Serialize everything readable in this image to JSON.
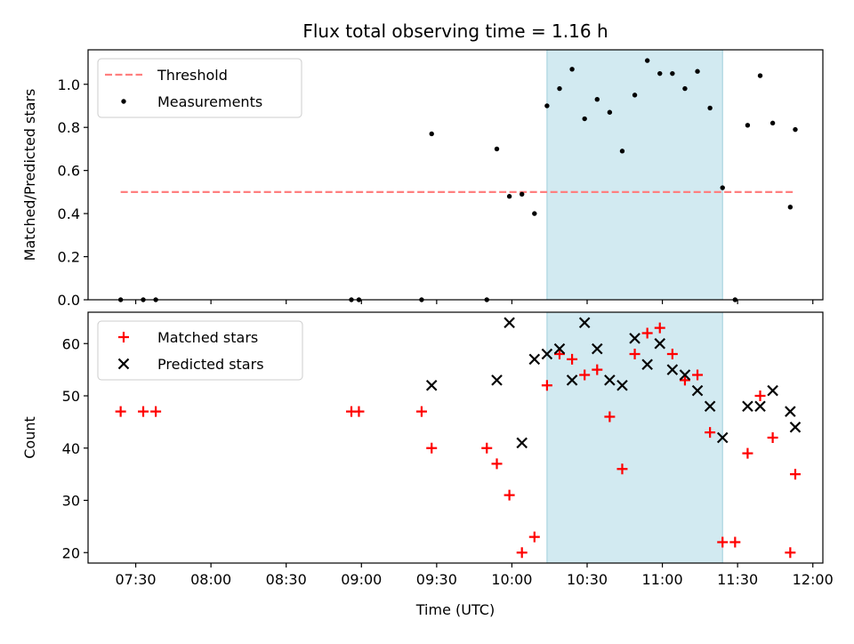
{
  "figure": {
    "title": "Flux total observing time = 1.16 h",
    "xlabel": "Time (UTC)",
    "highlight_color": "#add8e6"
  },
  "chart_data": [
    {
      "type": "scatter",
      "title": "Flux total observing time = 1.16 h",
      "xlabel": "",
      "ylabel": "Matched/Predicted stars",
      "xlim": [
        "07:11",
        "12:04"
      ],
      "ylim": [
        0,
        1.16
      ],
      "xticks": [
        "07:30",
        "08:00",
        "08:30",
        "09:00",
        "09:30",
        "10:00",
        "10:30",
        "11:00",
        "11:30",
        "12:00"
      ],
      "yticks": [
        "0.0",
        "0.2",
        "0.4",
        "0.6",
        "0.8",
        "1.0"
      ],
      "legend_position": "top-left",
      "highlight_span": [
        "10:14",
        "11:24"
      ],
      "threshold": {
        "name": "Threshold",
        "y": 0.5,
        "x_range": [
          "07:24",
          "11:53"
        ],
        "color": "#ff7f7f",
        "style": "dashed"
      },
      "series": [
        {
          "name": "Measurements",
          "marker": "dot",
          "color": "#000000",
          "x": [
            "07:24",
            "07:33",
            "07:38",
            "08:56",
            "08:59",
            "09:24",
            "09:28",
            "09:50",
            "09:54",
            "09:59",
            "10:04",
            "10:09",
            "10:14",
            "10:19",
            "10:24",
            "10:29",
            "10:34",
            "10:39",
            "10:44",
            "10:49",
            "10:54",
            "10:59",
            "11:04",
            "11:09",
            "11:14",
            "11:19",
            "11:24",
            "11:29",
            "11:34",
            "11:39",
            "11:44",
            "11:51",
            "11:53"
          ],
          "y": [
            0.0,
            0.0,
            0.0,
            0.0,
            0.0,
            0.0,
            0.77,
            0.0,
            0.7,
            0.48,
            0.49,
            0.4,
            0.9,
            0.98,
            1.07,
            0.84,
            0.93,
            0.87,
            0.69,
            0.95,
            1.11,
            1.05,
            1.05,
            0.98,
            1.06,
            0.89,
            0.52,
            0.0,
            0.81,
            1.04,
            0.82,
            0.43,
            0.79
          ]
        }
      ]
    },
    {
      "type": "scatter",
      "xlabel": "Time (UTC)",
      "ylabel": "Count",
      "xlim": [
        "07:11",
        "12:04"
      ],
      "ylim": [
        18,
        66
      ],
      "xticks": [
        "07:30",
        "08:00",
        "08:30",
        "09:00",
        "09:30",
        "10:00",
        "10:30",
        "11:00",
        "11:30",
        "12:00"
      ],
      "yticks": [
        "20",
        "30",
        "40",
        "50",
        "60"
      ],
      "legend_position": "top-left",
      "highlight_span": [
        "10:14",
        "11:24"
      ],
      "series": [
        {
          "name": "Matched stars",
          "marker": "plus",
          "color": "#ff0000",
          "x": [
            "07:24",
            "07:33",
            "07:38",
            "08:56",
            "08:59",
            "09:24",
            "09:28",
            "09:50",
            "09:54",
            "09:59",
            "10:04",
            "10:09",
            "10:14",
            "10:19",
            "10:24",
            "10:29",
            "10:34",
            "10:39",
            "10:44",
            "10:49",
            "10:54",
            "10:59",
            "11:04",
            "11:09",
            "11:14",
            "11:19",
            "11:24",
            "11:29",
            "11:34",
            "11:39",
            "11:44",
            "11:51",
            "11:53"
          ],
          "y": [
            47,
            47,
            47,
            47,
            47,
            47,
            40,
            40,
            37,
            31,
            20,
            23,
            52,
            58,
            57,
            54,
            55,
            46,
            36,
            58,
            62,
            63,
            58,
            53,
            54,
            43,
            22,
            22,
            39,
            50,
            42,
            20,
            35
          ]
        },
        {
          "name": "Predicted stars",
          "marker": "x",
          "color": "#000000",
          "x": [
            "09:28",
            "09:54",
            "09:59",
            "10:04",
            "10:09",
            "10:14",
            "10:19",
            "10:24",
            "10:29",
            "10:34",
            "10:39",
            "10:44",
            "10:49",
            "10:54",
            "10:59",
            "11:04",
            "11:09",
            "11:14",
            "11:19",
            "11:24",
            "11:34",
            "11:39",
            "11:44",
            "11:51",
            "11:53"
          ],
          "y": [
            52,
            53,
            64,
            41,
            57,
            58,
            59,
            53,
            64,
            59,
            53,
            52,
            61,
            56,
            60,
            55,
            54,
            51,
            48,
            42,
            48,
            48,
            51,
            47,
            44
          ]
        }
      ]
    }
  ]
}
